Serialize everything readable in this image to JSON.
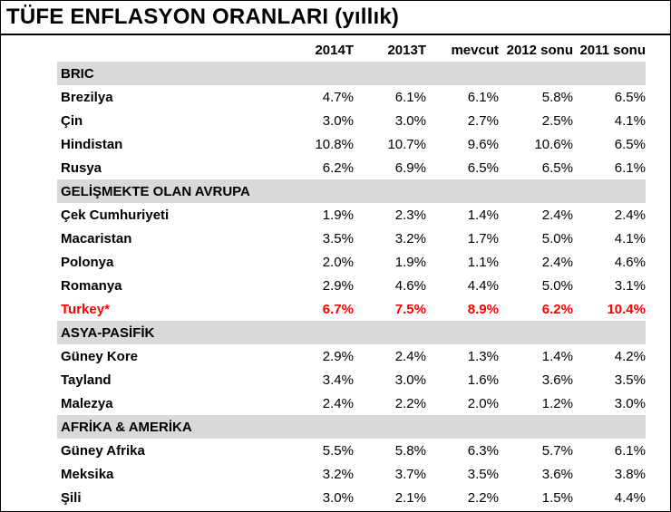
{
  "title": "TÜFE ENFLASYON ORANLARI (yıllık)",
  "columns": [
    "2014T",
    "2013T",
    "mevcut",
    "2012 sonu",
    "2011 sonu"
  ],
  "groups": [
    {
      "name": "BRIC",
      "rows": [
        {
          "name": "Brezilya",
          "values": [
            "4.7%",
            "6.1%",
            "6.1%",
            "5.8%",
            "6.5%"
          ]
        },
        {
          "name": "Çin",
          "values": [
            "3.0%",
            "3.0%",
            "2.7%",
            "2.5%",
            "4.1%"
          ]
        },
        {
          "name": "Hindistan",
          "values": [
            "10.8%",
            "10.7%",
            "9.6%",
            "10.6%",
            "6.5%"
          ]
        },
        {
          "name": "Rusya",
          "values": [
            "6.2%",
            "6.9%",
            "6.5%",
            "6.5%",
            "6.1%"
          ]
        }
      ]
    },
    {
      "name": "GELİŞMEKTE OLAN AVRUPA",
      "rows": [
        {
          "name": "Çek Cumhuriyeti",
          "values": [
            "1.9%",
            "2.3%",
            "1.4%",
            "2.4%",
            "2.4%"
          ]
        },
        {
          "name": "Macaristan",
          "values": [
            "3.5%",
            "3.2%",
            "1.7%",
            "5.0%",
            "4.1%"
          ]
        },
        {
          "name": "Polonya",
          "values": [
            "2.0%",
            "1.9%",
            "1.1%",
            "2.4%",
            "4.6%"
          ]
        },
        {
          "name": "Romanya",
          "values": [
            "2.9%",
            "4.6%",
            "4.4%",
            "5.0%",
            "3.1%"
          ]
        },
        {
          "name": "Turkey*",
          "values": [
            "6.7%",
            "7.5%",
            "8.9%",
            "6.2%",
            "10.4%"
          ],
          "highlight": true
        }
      ]
    },
    {
      "name": "ASYA-PASİFİK",
      "rows": [
        {
          "name": "Güney Kore",
          "values": [
            "2.9%",
            "2.4%",
            "1.3%",
            "1.4%",
            "4.2%"
          ]
        },
        {
          "name": "Tayland",
          "values": [
            "3.4%",
            "3.0%",
            "1.6%",
            "3.6%",
            "3.5%"
          ]
        },
        {
          "name": "Malezya",
          "values": [
            "2.4%",
            "2.2%",
            "2.0%",
            "1.2%",
            "3.0%"
          ]
        }
      ]
    },
    {
      "name": "AFRİKA & AMERİKA",
      "rows": [
        {
          "name": "Güney Afrika",
          "values": [
            "5.5%",
            "5.8%",
            "6.3%",
            "5.7%",
            "6.1%"
          ]
        },
        {
          "name": "Meksika",
          "values": [
            "3.2%",
            "3.7%",
            "3.5%",
            "3.6%",
            "3.8%"
          ]
        },
        {
          "name": "Şili",
          "values": [
            "3.0%",
            "2.1%",
            "2.2%",
            "1.5%",
            "4.4%"
          ]
        }
      ]
    }
  ],
  "colors": {
    "group_header_bg": "#d9d9d9",
    "highlight_text": "#ff0000",
    "text": "#000000"
  }
}
